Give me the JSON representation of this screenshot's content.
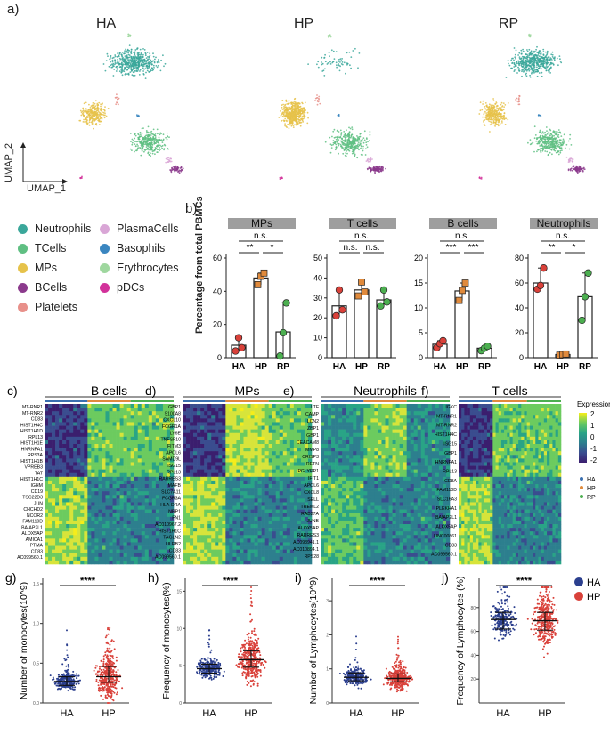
{
  "panel_a": {
    "letter": "a)",
    "titles": [
      "HA",
      "HP",
      "RP"
    ],
    "axis_y": "UMAP_2",
    "axis_x": "UMAP_1"
  },
  "legend": {
    "items": [
      {
        "label": "Neutrophils",
        "color": "#3aa79a"
      },
      {
        "label": "TCells",
        "color": "#5fbf82"
      },
      {
        "label": "MPs",
        "color": "#e6c24a"
      },
      {
        "label": "BCells",
        "color": "#8b3a8c"
      },
      {
        "label": "Platelets",
        "color": "#e8908a"
      },
      {
        "label": "PlasmaCells",
        "color": "#d9a6d6"
      },
      {
        "label": "Basophils",
        "color": "#3a86c0"
      },
      {
        "label": "Erythrocytes",
        "color": "#9fd79f"
      },
      {
        "label": "pDCs",
        "color": "#d2319a"
      }
    ]
  },
  "panel_b": {
    "letter": "b)",
    "ylabel": "Percentage from total PBMCs",
    "chart_data": [
      {
        "type": "bar",
        "title": "MPs",
        "categories": [
          "HA",
          "HP",
          "RP"
        ],
        "values": [
          7.5,
          48,
          15.5
        ],
        "ylim": [
          0,
          60
        ],
        "ticks": [
          "0",
          "20",
          "40",
          "60"
        ],
        "points": [
          [
            4,
            12,
            6
          ],
          [
            44,
            49,
            51
          ],
          [
            1,
            15,
            33
          ]
        ],
        "sig": [
          "n.s.",
          "**",
          "*"
        ]
      },
      {
        "type": "bar",
        "title": "T cells",
        "categories": [
          "HA",
          "HP",
          "RP"
        ],
        "values": [
          26,
          34,
          29
        ],
        "ylim": [
          0,
          50
        ],
        "ticks": [
          "0",
          "10",
          "20",
          "30",
          "40",
          "50"
        ],
        "points": [
          [
            21,
            34,
            24
          ],
          [
            31,
            38,
            33
          ],
          [
            26,
            34,
            28
          ]
        ],
        "sig": [
          "n.s.",
          "n.s.",
          "n.s."
        ]
      },
      {
        "type": "bar",
        "title": "B cells",
        "categories": [
          "HA",
          "HP",
          "RP"
        ],
        "values": [
          2.7,
          13.4,
          1.9
        ],
        "ylim": [
          0,
          20
        ],
        "ticks": [
          "0",
          "5",
          "10",
          "15",
          "20"
        ],
        "points": [
          [
            2,
            2.8,
            3.4
          ],
          [
            11.5,
            13.5,
            15
          ],
          [
            1.4,
            1.9,
            2.3
          ]
        ],
        "sig": [
          "n.s.",
          "***",
          "***"
        ]
      },
      {
        "type": "bar",
        "title": "Neutrophils",
        "categories": [
          "HA",
          "HP",
          "RP"
        ],
        "values": [
          60,
          2.5,
          49
        ],
        "ylim": [
          0,
          80
        ],
        "ticks": [
          "0",
          "20",
          "40",
          "60",
          "80"
        ],
        "points": [
          [
            55,
            58,
            72
          ],
          [
            2,
            2.5,
            3
          ],
          [
            30,
            49,
            68
          ]
        ],
        "sig": [
          "n.s.",
          "**",
          "*"
        ]
      }
    ]
  },
  "heatmaps": {
    "expression_title": "Expression",
    "scale_ticks": [
      "2",
      "1",
      "0",
      "-1",
      "-2"
    ],
    "group_legend": [
      {
        "label": "HA",
        "color": "#3a6fb0"
      },
      {
        "label": "HP",
        "color": "#e08a3c"
      },
      {
        "label": "RP",
        "color": "#4caf50"
      }
    ],
    "panels": [
      {
        "letter": "c)",
        "title": "B cells",
        "genes": [
          "MT-RNR1",
          "MT-RNR2",
          "CD83",
          "HIST1H4C",
          "HIST1H1D",
          "RPL13",
          "HIST1H1E",
          "HNRNPA1",
          "RPS3A",
          "HIST1H1B",
          "VPREB3",
          "TAT",
          "HIST1H1C",
          "IGHM",
          "CD19",
          "TSC22D3",
          "JUN",
          "CHCHD2",
          "NCOR2",
          "FAM110D",
          "BAIAP2L1",
          "ALOX5AP",
          "AMICA1",
          "PTMA",
          "CD83",
          "AC099560.1"
        ]
      },
      {
        "letter": "d)",
        "title": "MPs",
        "genes": [
          "GBP1",
          "S100A8",
          "CXCL10",
          "FCGR1A",
          "LY6E",
          "TNFSF10",
          "IFITM3",
          "APOL6",
          "SAMD9L",
          "ISG15",
          "RPL13",
          "RARRES3",
          "MAFB",
          "SLC7A11",
          "FCGR3A",
          "HLA-DRA",
          "NRP1",
          "FN1",
          "AC010967.2",
          "HIST1H1C",
          "TAGLN2",
          "LILRB2",
          "CD83",
          "AC099560.1"
        ]
      },
      {
        "letter": "e)",
        "title": "Neutrophils",
        "genes": [
          "LTF",
          "CAMP",
          "LCN2",
          "ZBP1",
          "GBP1",
          "CEACAM8",
          "MMP8",
          "CRISP3",
          "RETN",
          "PGLYRP1",
          "IFIT1",
          "APOL6",
          "CXCL8",
          "SELL",
          "TREML2",
          "RAB27A",
          "JUNB",
          "ALOX5AP",
          "RARRES3",
          "AC093941.1",
          "AC010894.1",
          "RPS28"
        ]
      },
      {
        "letter": "f)",
        "title": "T cells",
        "genes": [
          "IGKC",
          "MT-RNR1",
          "MT-RNR2",
          "HIST1H4C",
          "ISG15",
          "GBP1",
          "HNRNPA1",
          "RPL13",
          "CD8A",
          "FAM110D",
          "SLC16A3",
          "PLEKHA1",
          "BAIAP2L1",
          "ALOX5AP",
          "LINC00861",
          "CD83",
          "AC099560.1"
        ]
      }
    ]
  },
  "violins": [
    {
      "letter": "g)",
      "ylabel": "Number of monocytes(10^9)",
      "sig": "****",
      "categories": [
        "HA",
        "HP"
      ],
      "ylim": [
        0,
        1.5
      ],
      "ticks": [
        "0.0",
        "0.5",
        "1.0",
        "1.5"
      ],
      "medians": [
        0.27,
        0.33
      ],
      "q1": [
        0.22,
        0.26
      ],
      "q3": [
        0.33,
        0.46
      ]
    },
    {
      "letter": "h)",
      "ylabel": "Frequency of monocytes(%)",
      "sig": "****",
      "categories": [
        "HA",
        "HP"
      ],
      "ylim": [
        0,
        16
      ],
      "ticks": [
        "0",
        "5",
        "10",
        "15"
      ],
      "medians": [
        4.6,
        5.8
      ],
      "q1": [
        4.0,
        4.8
      ],
      "q3": [
        5.2,
        7.0
      ]
    },
    {
      "letter": "i)",
      "ylabel": "Number of Lymphocytes(10^9)",
      "sig": "****",
      "categories": [
        "HA",
        "HP"
      ],
      "ylim": [
        0,
        3.5
      ],
      "ticks": [
        "0",
        "1",
        "2",
        "3"
      ],
      "medians": [
        0.75,
        0.72
      ],
      "q1": [
        0.65,
        0.62
      ],
      "q3": [
        0.88,
        0.85
      ]
    },
    {
      "letter": "j)",
      "ylabel": "Frequency of Lymphocytes  (%)",
      "sig": "****",
      "categories": [
        "HA",
        "HP"
      ],
      "ylim": [
        0,
        100
      ],
      "ticks": [
        "20",
        "40",
        "60",
        "80"
      ],
      "medians": [
        70,
        69
      ],
      "q1": [
        62,
        61
      ],
      "q3": [
        76,
        76
      ]
    }
  ],
  "violin_legend": [
    {
      "label": "HA",
      "color": "#2b3f8e"
    },
    {
      "label": "HP",
      "color": "#d9413a"
    }
  ]
}
